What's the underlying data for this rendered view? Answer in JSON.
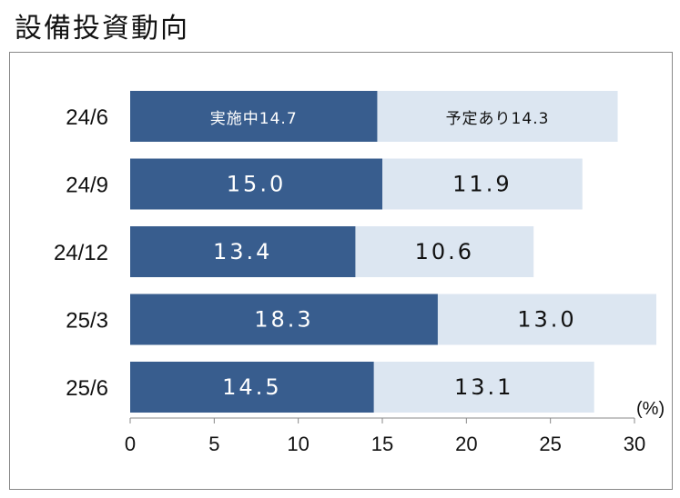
{
  "page": {
    "title": "設備投資動向"
  },
  "chart_data": {
    "type": "bar",
    "orientation": "horizontal",
    "stacked": true,
    "categories": [
      "24/6",
      "24/9",
      "24/12",
      "25/3",
      "25/6"
    ],
    "series": [
      {
        "name": "実施中",
        "values": [
          14.7,
          15.0,
          13.4,
          18.3,
          14.5
        ],
        "color": "#385d8e",
        "label_color": "#ffffff"
      },
      {
        "name": "予定あり",
        "values": [
          14.3,
          11.9,
          10.6,
          13.0,
          13.1
        ],
        "color": "#dce6f1",
        "label_color": "#111111"
      }
    ],
    "data_labels": [
      [
        "実施中14.7",
        "15.0",
        "13.4",
        "18.3",
        "14.5"
      ],
      [
        "予定あり14.3",
        "11.9",
        "10.6",
        "13.0",
        "13.1"
      ]
    ],
    "x_ticks": [
      "0",
      "5",
      "10",
      "15",
      "20",
      "25",
      "30"
    ],
    "xlim": [
      0,
      30
    ],
    "x_unit": "(%)",
    "grid": false
  }
}
